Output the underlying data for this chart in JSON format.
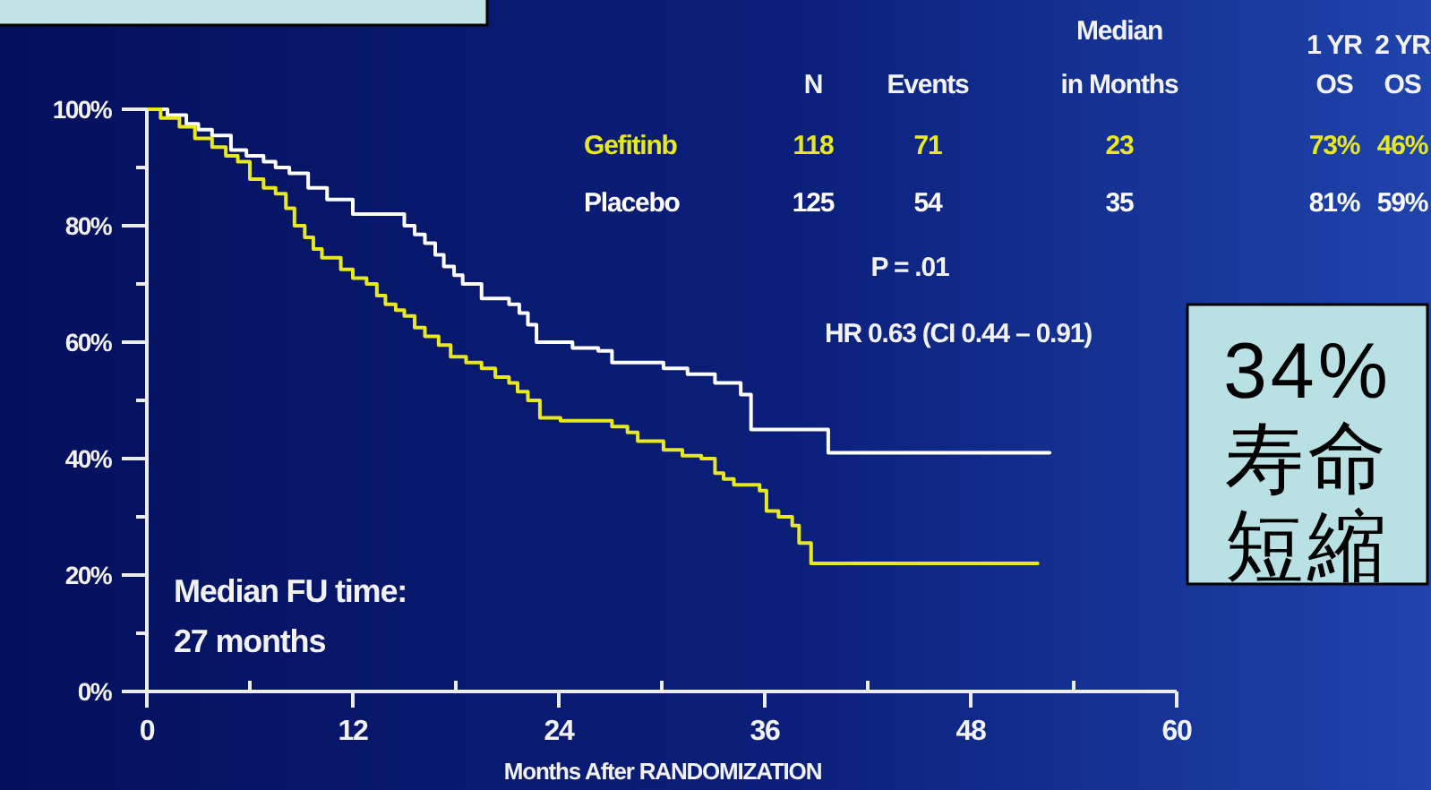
{
  "chart_data": {
    "type": "step",
    "xlabel": "Months After RANDOMIZATION",
    "xlim": [
      0,
      60
    ],
    "xticks": [
      0,
      {
        "value": 6,
        "label": null
      },
      12,
      {
        "value": 18,
        "label": null
      },
      24,
      {
        "value": 30,
        "label": null
      },
      36,
      {
        "value": 42,
        "label": null
      },
      48,
      {
        "value": 54,
        "label": null
      },
      60
    ],
    "ylim": [
      0,
      100
    ],
    "yticks": [
      {
        "value": 0,
        "label": "0%"
      },
      {
        "value": 10,
        "label": null
      },
      {
        "value": 20,
        "label": "20%"
      },
      {
        "value": 30,
        "label": null
      },
      {
        "value": 40,
        "label": "40%"
      },
      {
        "value": 50,
        "label": null
      },
      {
        "value": 60,
        "label": "60%"
      },
      {
        "value": 70,
        "label": null
      },
      {
        "value": 80,
        "label": "80%"
      },
      {
        "value": 90,
        "label": null
      },
      {
        "value": 100,
        "label": "100%"
      }
    ],
    "legend": "top right",
    "line_style": "solid",
    "series": [
      {
        "name": "Gefitinb",
        "color": "#e8e820",
        "x": [
          0,
          0.8,
          1.9,
          2.8,
          3.8,
          4.6,
          5.3,
          6.0,
          6.8,
          7.5,
          8.1,
          8.6,
          9.2,
          9.7,
          10.2,
          11.3,
          12.0,
          12.8,
          13.4,
          13.9,
          14.5,
          15.0,
          15.6,
          16.2,
          17.0,
          17.7,
          18.6,
          19.5,
          20.3,
          21.1,
          21.6,
          22.2,
          22.9,
          24.1,
          27.1,
          28.0,
          28.6,
          30.1,
          31.2,
          32.3,
          33.1,
          33.6,
          34.2,
          35.7,
          36.1,
          36.8,
          37.6,
          38.0,
          38.7,
          51.9
        ],
        "values": [
          100,
          98.5,
          97,
          95,
          93.5,
          92,
          91,
          88,
          86.5,
          85.5,
          83,
          80,
          78,
          76,
          74.5,
          72.5,
          71,
          70,
          68,
          66.5,
          65.5,
          64.5,
          62.5,
          61,
          59.5,
          57.5,
          56.5,
          55.5,
          54,
          53,
          51.5,
          50,
          47,
          46.5,
          45.5,
          44.5,
          43,
          41.5,
          40.5,
          40,
          37.5,
          36.5,
          35.5,
          34.5,
          31,
          30,
          28.5,
          25.5,
          22,
          22
        ]
      },
      {
        "name": "Placebo",
        "color": "#ffffff",
        "x": [
          0,
          1.2,
          2.3,
          3.0,
          3.8,
          4.9,
          5.8,
          6.8,
          7.5,
          8.3,
          9.4,
          10.5,
          12.0,
          15.0,
          15.6,
          16.2,
          16.8,
          17.3,
          17.9,
          18.4,
          19.5,
          21.1,
          21.7,
          22.2,
          22.7,
          24.8,
          26.3,
          27.1,
          30.1,
          31.5,
          33.1,
          34.6,
          35.2,
          39.7,
          52.6
        ],
        "values": [
          100,
          99,
          97.5,
          96.5,
          95.5,
          93,
          92,
          91,
          90,
          89,
          86.5,
          84.5,
          82,
          80,
          78.5,
          77,
          75,
          73,
          71.5,
          70,
          67.5,
          66.5,
          65,
          63,
          60,
          59,
          58.5,
          56.5,
          55.5,
          54.5,
          53,
          51,
          45,
          41,
          41
        ]
      }
    ],
    "annotations": [
      "N",
      "Events",
      "Median\nin Months",
      "1 YR\nOS",
      "2 YR\nOS",
      "118",
      "71",
      "23",
      "73%",
      "46%",
      "125",
      "54",
      "35",
      "81%",
      "59%",
      "P = .01",
      "HR 0.63 (CI 0.44 – 0.91)",
      "Median FU time:\n27 months",
      "34%寿命短縮"
    ]
  }
}
